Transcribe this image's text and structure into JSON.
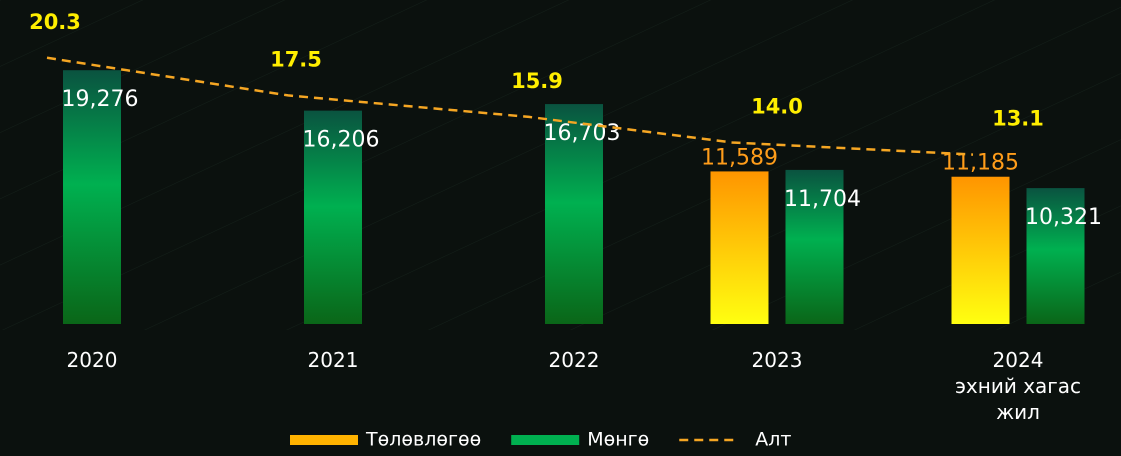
{
  "chart_data": {
    "type": "bar",
    "categories": [
      "2020",
      "2021",
      "2022",
      "2023",
      "2024\nэхний хагас\nжил"
    ],
    "ylim": [
      0,
      24000
    ],
    "y2lim": [
      0.5,
      24
    ],
    "series": [
      {
        "name": "Төлөвлөгөө",
        "color": "#ffb300",
        "values": [
          null,
          null,
          null,
          11589,
          11185
        ],
        "value_labels": [
          null,
          null,
          null,
          "11,589",
          "11,185"
        ]
      },
      {
        "name": "Мөнгө",
        "color": "#00b050",
        "values": [
          19276,
          16206,
          16703,
          11704,
          10321
        ],
        "value_labels": [
          "19,276",
          "16,206",
          "16,703",
          "11,704",
          "10,321"
        ]
      },
      {
        "name": "Алт",
        "color": "#f5a623",
        "type": "line",
        "axis": "y2",
        "values": [
          20.3,
          17.5,
          15.9,
          14.0,
          13.1
        ],
        "value_labels": [
          "20.3",
          "17.5",
          "15.9",
          "14.0",
          "13.1"
        ]
      }
    ]
  }
}
